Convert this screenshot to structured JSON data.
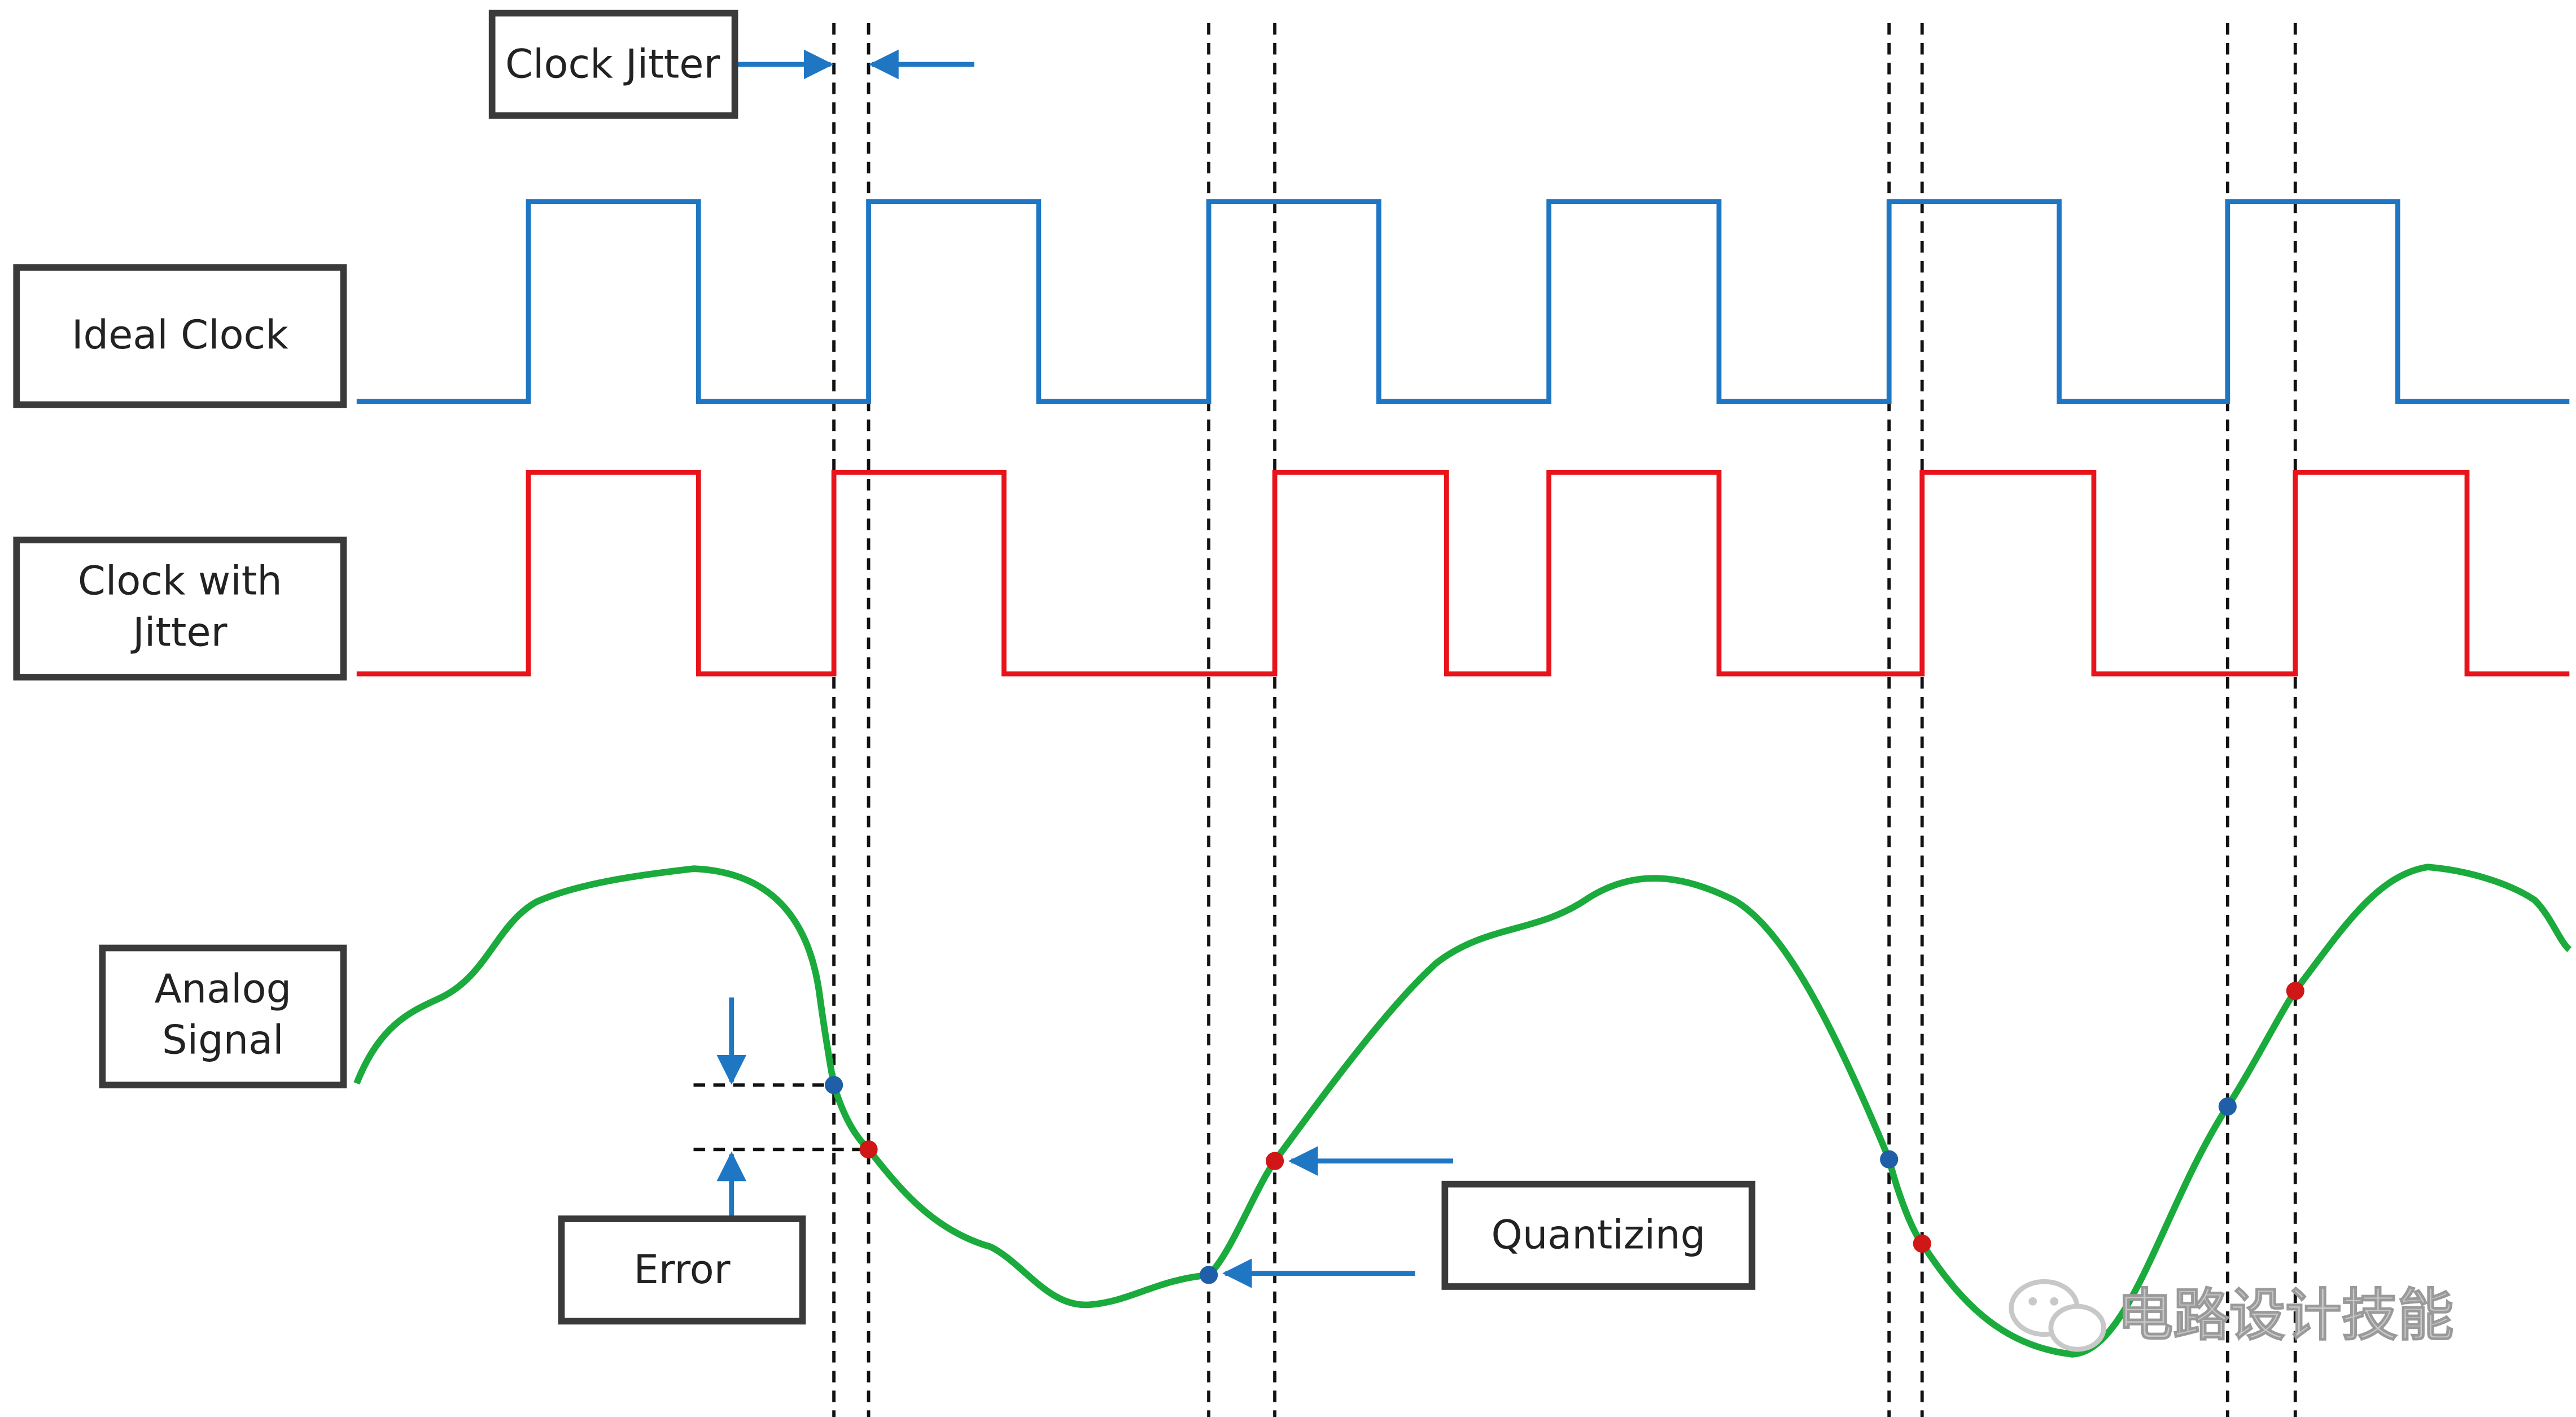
{
  "labels": {
    "clock_jitter": "Clock Jitter",
    "ideal_clock": "Ideal Clock",
    "clock_with_jitter_line1": "Clock with",
    "clock_with_jitter_line2": "Jitter",
    "analog_signal_line1": "Analog",
    "analog_signal_line2": "Signal",
    "error": "Error",
    "quantizing": "Quantizing"
  },
  "watermark": {
    "text": "电路设计技能"
  },
  "colors": {
    "ideal_clock": "#1f77c4",
    "jitter_clock": "#e8141c",
    "analog_signal": "#1aab3c",
    "ideal_sample_point": "#1f5fa8",
    "jitter_sample_point": "#d01616",
    "arrow": "#1f77c4",
    "box_border": "#3a3a3a",
    "guide_line": "#111111",
    "watermark": "#c8c8c8"
  },
  "icons": {
    "watermark_logo": "wechat-chat-icon"
  }
}
